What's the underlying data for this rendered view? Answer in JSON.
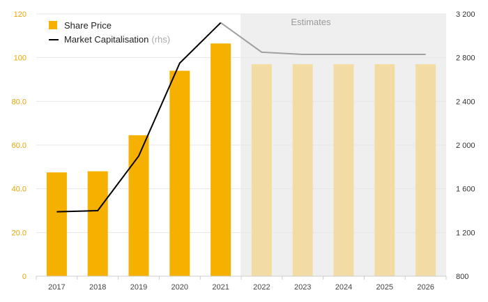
{
  "chart_data": {
    "type": "bar",
    "categories": [
      "2017",
      "2018",
      "2019",
      "2020",
      "2021",
      "2022",
      "2023",
      "2024",
      "2025",
      "2026"
    ],
    "series": [
      {
        "name": "Share Price",
        "type": "bar",
        "axis": "left",
        "values": [
          47.5,
          48,
          64.5,
          94,
          106.5,
          97,
          97,
          97,
          97,
          97
        ],
        "estimate_from_index": 5
      },
      {
        "name": "Market Capitalisation",
        "legend_suffix": "(rhs)",
        "type": "line",
        "axis": "right",
        "values": [
          1390,
          1400,
          1900,
          2750,
          3120,
          2850,
          2830,
          2830,
          2830,
          2830
        ],
        "estimate_from_index": 4
      }
    ],
    "y_left": {
      "ylim": [
        0,
        120
      ],
      "ticks": [
        0,
        20,
        40,
        60,
        80,
        100,
        120
      ],
      "tick_labels": [
        "0",
        "20.0",
        "40.0",
        "60.0",
        "80.0",
        "100",
        "120"
      ]
    },
    "y_right": {
      "ylim": [
        800,
        3200
      ],
      "ticks": [
        800,
        1200,
        1600,
        2000,
        2400,
        2800,
        3200
      ],
      "tick_labels": [
        "800",
        "1 200",
        "1 600",
        "2 000",
        "2 400",
        "2 800",
        "3 200"
      ]
    },
    "estimates_label": "Estimates",
    "estimates_start_category": "2022",
    "legend_position": "top-left",
    "grid": true
  },
  "colors": {
    "bar": "#f5b000",
    "bar_estimate": "#f3dca4",
    "line": "#000000",
    "line_estimate": "#a0a0a0",
    "estimates_shade": "#efefef",
    "grid": "#e6e6e6",
    "left_axis_text": "#e8a400"
  }
}
